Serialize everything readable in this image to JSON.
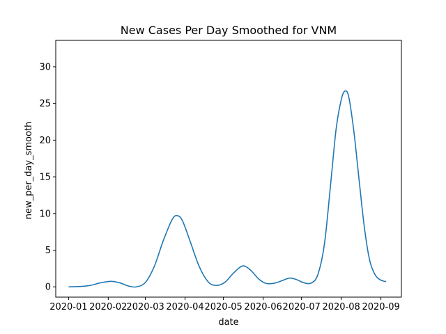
{
  "chart_data": {
    "type": "line",
    "title": "New Cases Per Day Smoothed for VNM",
    "xlabel": "date",
    "ylabel": "new_per_day_smooth",
    "xlim": [
      "2019-12-22",
      "2020-09-17"
    ],
    "ylim": [
      -1.4,
      33.6
    ],
    "x_ticks": [
      "2020-01-01",
      "2020-02-01",
      "2020-03-01",
      "2020-04-01",
      "2020-05-01",
      "2020-06-01",
      "2020-07-01",
      "2020-08-01",
      "2020-09-01"
    ],
    "x_tick_labels": [
      "2020-01",
      "2020-02",
      "2020-03",
      "2020-04",
      "2020-05",
      "2020-06",
      "2020-07",
      "2020-08",
      "2020-09"
    ],
    "y_ticks": [
      0,
      5,
      10,
      15,
      20,
      25,
      30
    ],
    "y_tick_labels": [
      "0",
      "5",
      "10",
      "15",
      "20",
      "25",
      "30"
    ],
    "grid": false,
    "series": [
      {
        "color": "#1f77b4",
        "points": [
          [
            "2020-01-01",
            0.0
          ],
          [
            "2020-01-10",
            0.05
          ],
          [
            "2020-01-18",
            0.2
          ],
          [
            "2020-01-26",
            0.55
          ],
          [
            "2020-02-03",
            0.75
          ],
          [
            "2020-02-10",
            0.55
          ],
          [
            "2020-02-17",
            0.1
          ],
          [
            "2020-02-23",
            0.0
          ],
          [
            "2020-03-01",
            0.6
          ],
          [
            "2020-03-08",
            2.8
          ],
          [
            "2020-03-15",
            6.3
          ],
          [
            "2020-03-22",
            9.2
          ],
          [
            "2020-03-26",
            9.7
          ],
          [
            "2020-03-30",
            9.0
          ],
          [
            "2020-04-05",
            6.2
          ],
          [
            "2020-04-12",
            2.8
          ],
          [
            "2020-04-19",
            0.7
          ],
          [
            "2020-04-25",
            0.2
          ],
          [
            "2020-05-02",
            0.6
          ],
          [
            "2020-05-09",
            1.9
          ],
          [
            "2020-05-16",
            2.85
          ],
          [
            "2020-05-22",
            2.3
          ],
          [
            "2020-05-29",
            1.0
          ],
          [
            "2020-06-04",
            0.45
          ],
          [
            "2020-06-11",
            0.55
          ],
          [
            "2020-06-18",
            1.0
          ],
          [
            "2020-06-22",
            1.2
          ],
          [
            "2020-06-27",
            1.0
          ],
          [
            "2020-07-03",
            0.55
          ],
          [
            "2020-07-09",
            0.55
          ],
          [
            "2020-07-14",
            1.8
          ],
          [
            "2020-07-19",
            6.0
          ],
          [
            "2020-07-24",
            14.5
          ],
          [
            "2020-07-28",
            21.5
          ],
          [
            "2020-08-01",
            25.5
          ],
          [
            "2020-08-04",
            26.7
          ],
          [
            "2020-08-07",
            25.8
          ],
          [
            "2020-08-11",
            21.0
          ],
          [
            "2020-08-15",
            14.5
          ],
          [
            "2020-08-19",
            8.2
          ],
          [
            "2020-08-23",
            3.8
          ],
          [
            "2020-08-27",
            1.8
          ],
          [
            "2020-08-31",
            1.0
          ],
          [
            "2020-09-05",
            0.7
          ]
        ]
      }
    ]
  }
}
